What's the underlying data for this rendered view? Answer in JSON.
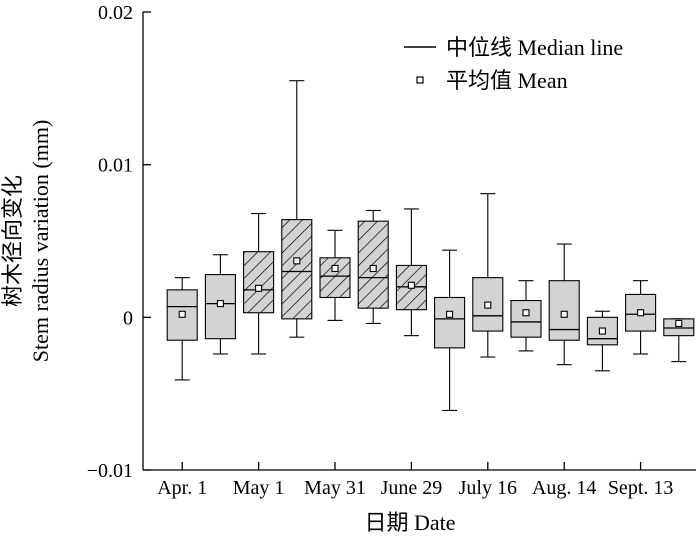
{
  "chart_data": {
    "type": "boxplot",
    "title": "",
    "xlabel": "日期 Date",
    "ylabel_cn": "树木径向变化",
    "ylabel_en": "Stem radius variation (mm)",
    "ylim": [
      -0.01,
      0.02
    ],
    "yticks": [
      {
        "value": -0.01,
        "label": "−0.01"
      },
      {
        "value": 0,
        "label": "0"
      },
      {
        "value": 0.01,
        "label": "0.01"
      },
      {
        "value": 0.02,
        "label": "0.02"
      }
    ],
    "xticks": [
      {
        "pos": 1,
        "label": "Apr. 1"
      },
      {
        "pos": 3,
        "label": "May 1"
      },
      {
        "pos": 5,
        "label": "May 31"
      },
      {
        "pos": 7,
        "label": "June 29"
      },
      {
        "pos": 9,
        "label": "July 16"
      },
      {
        "pos": 11,
        "label": "Aug. 14"
      },
      {
        "pos": 13,
        "label": "Sept. 13"
      }
    ],
    "legend": {
      "position": "top-right",
      "median_label": "中位线 Median line",
      "mean_label": "平均值 Mean"
    },
    "boxes": [
      {
        "pos": 1,
        "whisker_low": -0.0041,
        "q1": -0.0015,
        "median": 0.0007,
        "q3": 0.0018,
        "whisker_high": 0.0026,
        "mean": 0.0002,
        "hatched": false
      },
      {
        "pos": 2,
        "whisker_low": -0.0024,
        "q1": -0.0014,
        "median": 0.0009,
        "q3": 0.0028,
        "whisker_high": 0.0041,
        "mean": 0.0009,
        "hatched": false
      },
      {
        "pos": 3,
        "whisker_low": -0.0024,
        "q1": 0.0003,
        "median": 0.0018,
        "q3": 0.0043,
        "whisker_high": 0.0068,
        "mean": 0.0019,
        "hatched": true
      },
      {
        "pos": 4,
        "whisker_low": -0.0013,
        "q1": -0.0001,
        "median": 0.003,
        "q3": 0.0064,
        "whisker_high": 0.0155,
        "mean": 0.0037,
        "hatched": true
      },
      {
        "pos": 5,
        "whisker_low": -0.0002,
        "q1": 0.0013,
        "median": 0.0027,
        "q3": 0.0039,
        "whisker_high": 0.0057,
        "mean": 0.0032,
        "hatched": true
      },
      {
        "pos": 6,
        "whisker_low": -0.0004,
        "q1": 0.0006,
        "median": 0.0026,
        "q3": 0.0063,
        "whisker_high": 0.007,
        "mean": 0.0032,
        "hatched": true
      },
      {
        "pos": 7,
        "whisker_low": -0.0012,
        "q1": 0.0005,
        "median": 0.002,
        "q3": 0.0034,
        "whisker_high": 0.0071,
        "mean": 0.0021,
        "hatched": true
      },
      {
        "pos": 8,
        "whisker_low": -0.0061,
        "q1": -0.002,
        "median": -0.0001,
        "q3": 0.0013,
        "whisker_high": 0.0044,
        "mean": 0.0002,
        "hatched": false
      },
      {
        "pos": 9,
        "whisker_low": -0.0026,
        "q1": -0.0009,
        "median": 0.0001,
        "q3": 0.0026,
        "whisker_high": 0.0081,
        "mean": 0.0008,
        "hatched": false
      },
      {
        "pos": 10,
        "whisker_low": -0.0022,
        "q1": -0.0013,
        "median": -0.0003,
        "q3": 0.0011,
        "whisker_high": 0.0024,
        "mean": 0.0003,
        "hatched": false
      },
      {
        "pos": 11,
        "whisker_low": -0.0031,
        "q1": -0.0015,
        "median": -0.0008,
        "q3": 0.0024,
        "whisker_high": 0.0048,
        "mean": 0.0002,
        "hatched": false
      },
      {
        "pos": 12,
        "whisker_low": -0.0035,
        "q1": -0.0018,
        "median": -0.0014,
        "q3": 0,
        "whisker_high": 0.0004,
        "mean": -0.0009,
        "hatched": false
      },
      {
        "pos": 13,
        "whisker_low": -0.0024,
        "q1": -0.0009,
        "median": 0.0002,
        "q3": 0.0015,
        "whisker_high": 0.0024,
        "mean": 0.0003,
        "hatched": false
      },
      {
        "pos": 14,
        "whisker_low": -0.0029,
        "q1": -0.0012,
        "median": -0.0007,
        "q3": -0.0001,
        "whisker_high": -0.0001,
        "mean": -0.0004,
        "hatched": false
      }
    ]
  },
  "colors": {
    "box_fill": "#d3d3d3",
    "stroke": "#000000",
    "mean_marker_fill": "#ffffff"
  }
}
